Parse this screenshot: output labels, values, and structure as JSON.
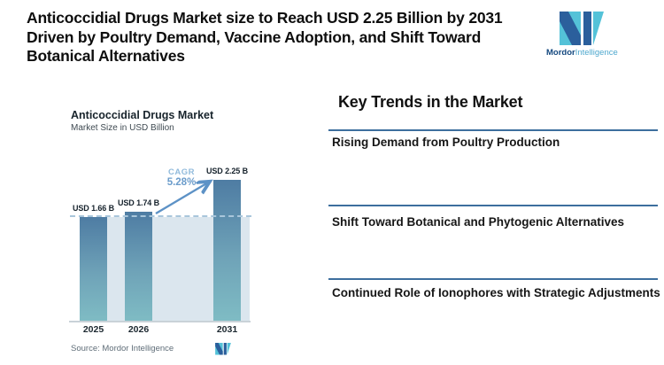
{
  "header": {
    "title_lines": [
      "Anticoccidial Drugs Market size to Reach USD 2.25 Billion by 2031",
      "Driven by Poultry Demand, Vaccine Adoption, and Shift Toward",
      "Botanical Alternatives"
    ]
  },
  "logo": {
    "brand_bold": "Mordor",
    "brand_light": "Intelligence",
    "navy": "#2b5f9c",
    "teal": "#54c2d8"
  },
  "chart_data": {
    "type": "bar",
    "title": "Anticoccidial Drugs Market",
    "subtitle": "Market Size in USD Billion",
    "categories": [
      "2025",
      "2026",
      "2031"
    ],
    "values": [
      1.66,
      1.74,
      2.25
    ],
    "value_labels": [
      "USD 1.66 B",
      "USD 1.74 B",
      "USD 2.25 B"
    ],
    "unit": "USD Billion",
    "cagr_label": "CAGR",
    "cagr_value": "5.28%",
    "baseline_dash_at": 1.66,
    "ylim": [
      0,
      2.25
    ],
    "grid": false,
    "legend": false,
    "bar_color_top": "#4e7ca3",
    "bar_color_bottom": "#7fbcc4",
    "plot_bg_color": "#dbe6ee",
    "dash_line_color": "#a9c6db",
    "arrow_color": "#5d92c6"
  },
  "source": {
    "label": "Source: Mordor Intelligence"
  },
  "trends": {
    "heading": "Key Trends in the Market",
    "divider_color": "#3d6f9e",
    "items": [
      {
        "label": "Rising Demand from Poultry Production"
      },
      {
        "label": "Shift Toward Botanical and Phytogenic Alternatives"
      },
      {
        "label": "Continued Role of Ionophores with Strategic Adjustments"
      }
    ]
  }
}
